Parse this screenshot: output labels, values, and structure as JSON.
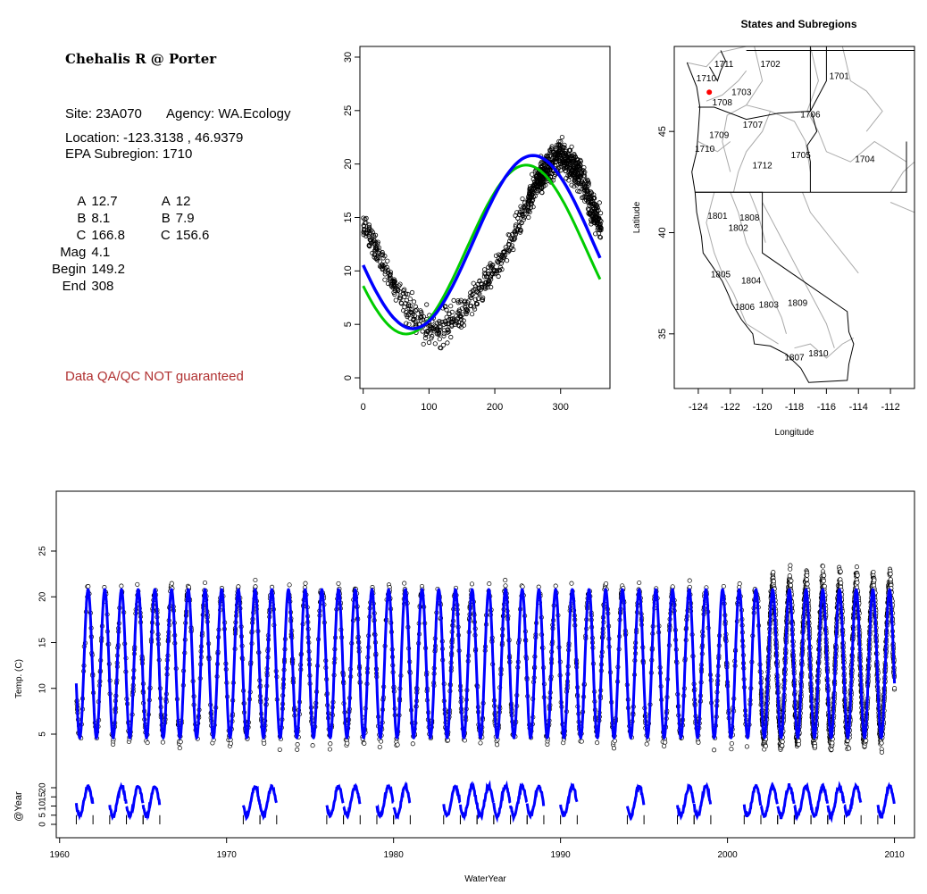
{
  "site": {
    "title": "Chehalis R @ Porter",
    "site_line": "Site: 23A070",
    "agency_line": "Agency: WA.Ecology",
    "location_line": "Location: -123.3138 , 46.9379",
    "subregion_line": "EPA Subregion: 1710",
    "qa_note": "Data QA/QC NOT guaranteed",
    "qa_color": "#b03030"
  },
  "params": [
    {
      "key": "A",
      "v1": "12.7",
      "key2": "A",
      "v2": "12"
    },
    {
      "key": "B",
      "v1": "8.1",
      "key2": "B",
      "v2": "7.9"
    },
    {
      "key": "C",
      "v1": "166.8",
      "key2": "C",
      "v2": "156.6"
    },
    {
      "key": "Mag",
      "v1": "4.1",
      "key2": "",
      "v2": ""
    },
    {
      "key": "Begin",
      "v1": "149.2",
      "key2": "",
      "v2": ""
    },
    {
      "key": "End",
      "v1": "308",
      "key2": "",
      "v2": ""
    }
  ],
  "colors": {
    "fit_blue": "#0000ff",
    "fit_green": "#00cc00",
    "points": "#000000",
    "state_lines": "#000000",
    "subregion_lines": "#aaaaaa",
    "site_marker": "#ff0000"
  },
  "chart_data": [
    {
      "type": "scatter",
      "title": "",
      "xlabel": "",
      "ylabel": "",
      "xlim": [
        -5,
        375
      ],
      "ylim": [
        -1,
        31
      ],
      "xticks": [
        0,
        100,
        200,
        300
      ],
      "yticks": [
        0,
        5,
        10,
        15,
        20,
        25,
        30
      ],
      "points_description_free": true,
      "scatter_envelope": {
        "x": [
          0,
          30,
          60,
          90,
          120,
          150,
          180,
          210,
          240,
          270,
          300,
          330,
          360
        ],
        "y": [
          14.5,
          11,
          7,
          5,
          4.5,
          6,
          8.5,
          11,
          15,
          19,
          21,
          19,
          14
        ]
      },
      "series": [
        {
          "name": "",
          "color": "#00cc00",
          "fit": {
            "A": 12,
            "B": 7.9,
            "C": 156.6
          }
        },
        {
          "name": "",
          "color": "#0000ff",
          "fit": {
            "A": 12.7,
            "B": 8.1,
            "C": 166.8
          }
        }
      ]
    },
    {
      "type": "map",
      "title": "States and Subregions",
      "xlabel": "Longitude",
      "ylabel": "Latitude",
      "xlim": [
        -125.5,
        -110.5
      ],
      "ylim": [
        32.3,
        49.2
      ],
      "xticks": [
        -124,
        -122,
        -120,
        -118,
        -116,
        -114,
        -112
      ],
      "yticks": [
        35,
        40,
        45
      ],
      "site": {
        "lon": -123.3138,
        "lat": 46.9379
      },
      "subregion_labels": [
        {
          "label": "1711",
          "lon": -122.4,
          "lat": 48.3
        },
        {
          "label": "1702",
          "lon": -119.5,
          "lat": 48.3
        },
        {
          "label": "1701",
          "lon": -115.2,
          "lat": 47.7
        },
        {
          "label": "1710",
          "lon": -123.5,
          "lat": 47.6
        },
        {
          "label": "1703",
          "lon": -121.3,
          "lat": 46.9
        },
        {
          "label": "1708",
          "lon": -122.5,
          "lat": 46.4
        },
        {
          "label": "1706",
          "lon": -117.0,
          "lat": 45.8
        },
        {
          "label": "1707",
          "lon": -120.6,
          "lat": 45.3
        },
        {
          "label": "1709",
          "lon": -122.7,
          "lat": 44.8
        },
        {
          "label": "1710",
          "lon": -123.6,
          "lat": 44.1
        },
        {
          "label": "1705",
          "lon": -117.6,
          "lat": 43.8
        },
        {
          "label": "1704",
          "lon": -113.6,
          "lat": 43.6
        },
        {
          "label": "1712",
          "lon": -120.0,
          "lat": 43.3
        },
        {
          "label": "1801",
          "lon": -122.8,
          "lat": 40.8
        },
        {
          "label": "1808",
          "lon": -120.8,
          "lat": 40.7
        },
        {
          "label": "1802",
          "lon": -121.5,
          "lat": 40.2
        },
        {
          "label": "1805",
          "lon": -122.6,
          "lat": 37.9
        },
        {
          "label": "1804",
          "lon": -120.7,
          "lat": 37.6
        },
        {
          "label": "1809",
          "lon": -117.8,
          "lat": 36.5
        },
        {
          "label": "1806",
          "lon": -121.1,
          "lat": 36.3
        },
        {
          "label": "1803",
          "lon": -119.6,
          "lat": 36.4
        },
        {
          "label": "1807",
          "lon": -118.0,
          "lat": 33.8
        },
        {
          "label": "1810",
          "lon": -116.5,
          "lat": 34.0
        }
      ]
    },
    {
      "type": "line",
      "title": "",
      "xlabel": "WaterYear",
      "ylabel": "Temp. (C)",
      "xlim": [
        1959.8,
        2011.2
      ],
      "ylim": [
        0,
        30
      ],
      "xticks": [
        1960,
        1970,
        1980,
        1990,
        2000,
        2010
      ],
      "yticks": [
        5,
        10,
        15,
        20,
        25
      ],
      "fit": {
        "A": 12.7,
        "B": 8.1,
        "C": 166.8
      },
      "x_range": [
        1961,
        2010
      ],
      "dense_obs_years": [
        2002,
        2010
      ]
    },
    {
      "type": "line",
      "title": "",
      "xlabel": "",
      "ylabel": "@Year",
      "yticks": [
        0,
        5,
        10,
        15,
        20
      ],
      "years_with_curves": [
        1961,
        1963,
        1964,
        1965,
        1971,
        1972,
        1976,
        1977,
        1979,
        1980,
        1983,
        1984,
        1985,
        1986,
        1987,
        1988,
        1990,
        1994,
        1997,
        1998,
        2001,
        2002,
        2003,
        2004,
        2005,
        2006,
        2007,
        2009
      ]
    }
  ]
}
